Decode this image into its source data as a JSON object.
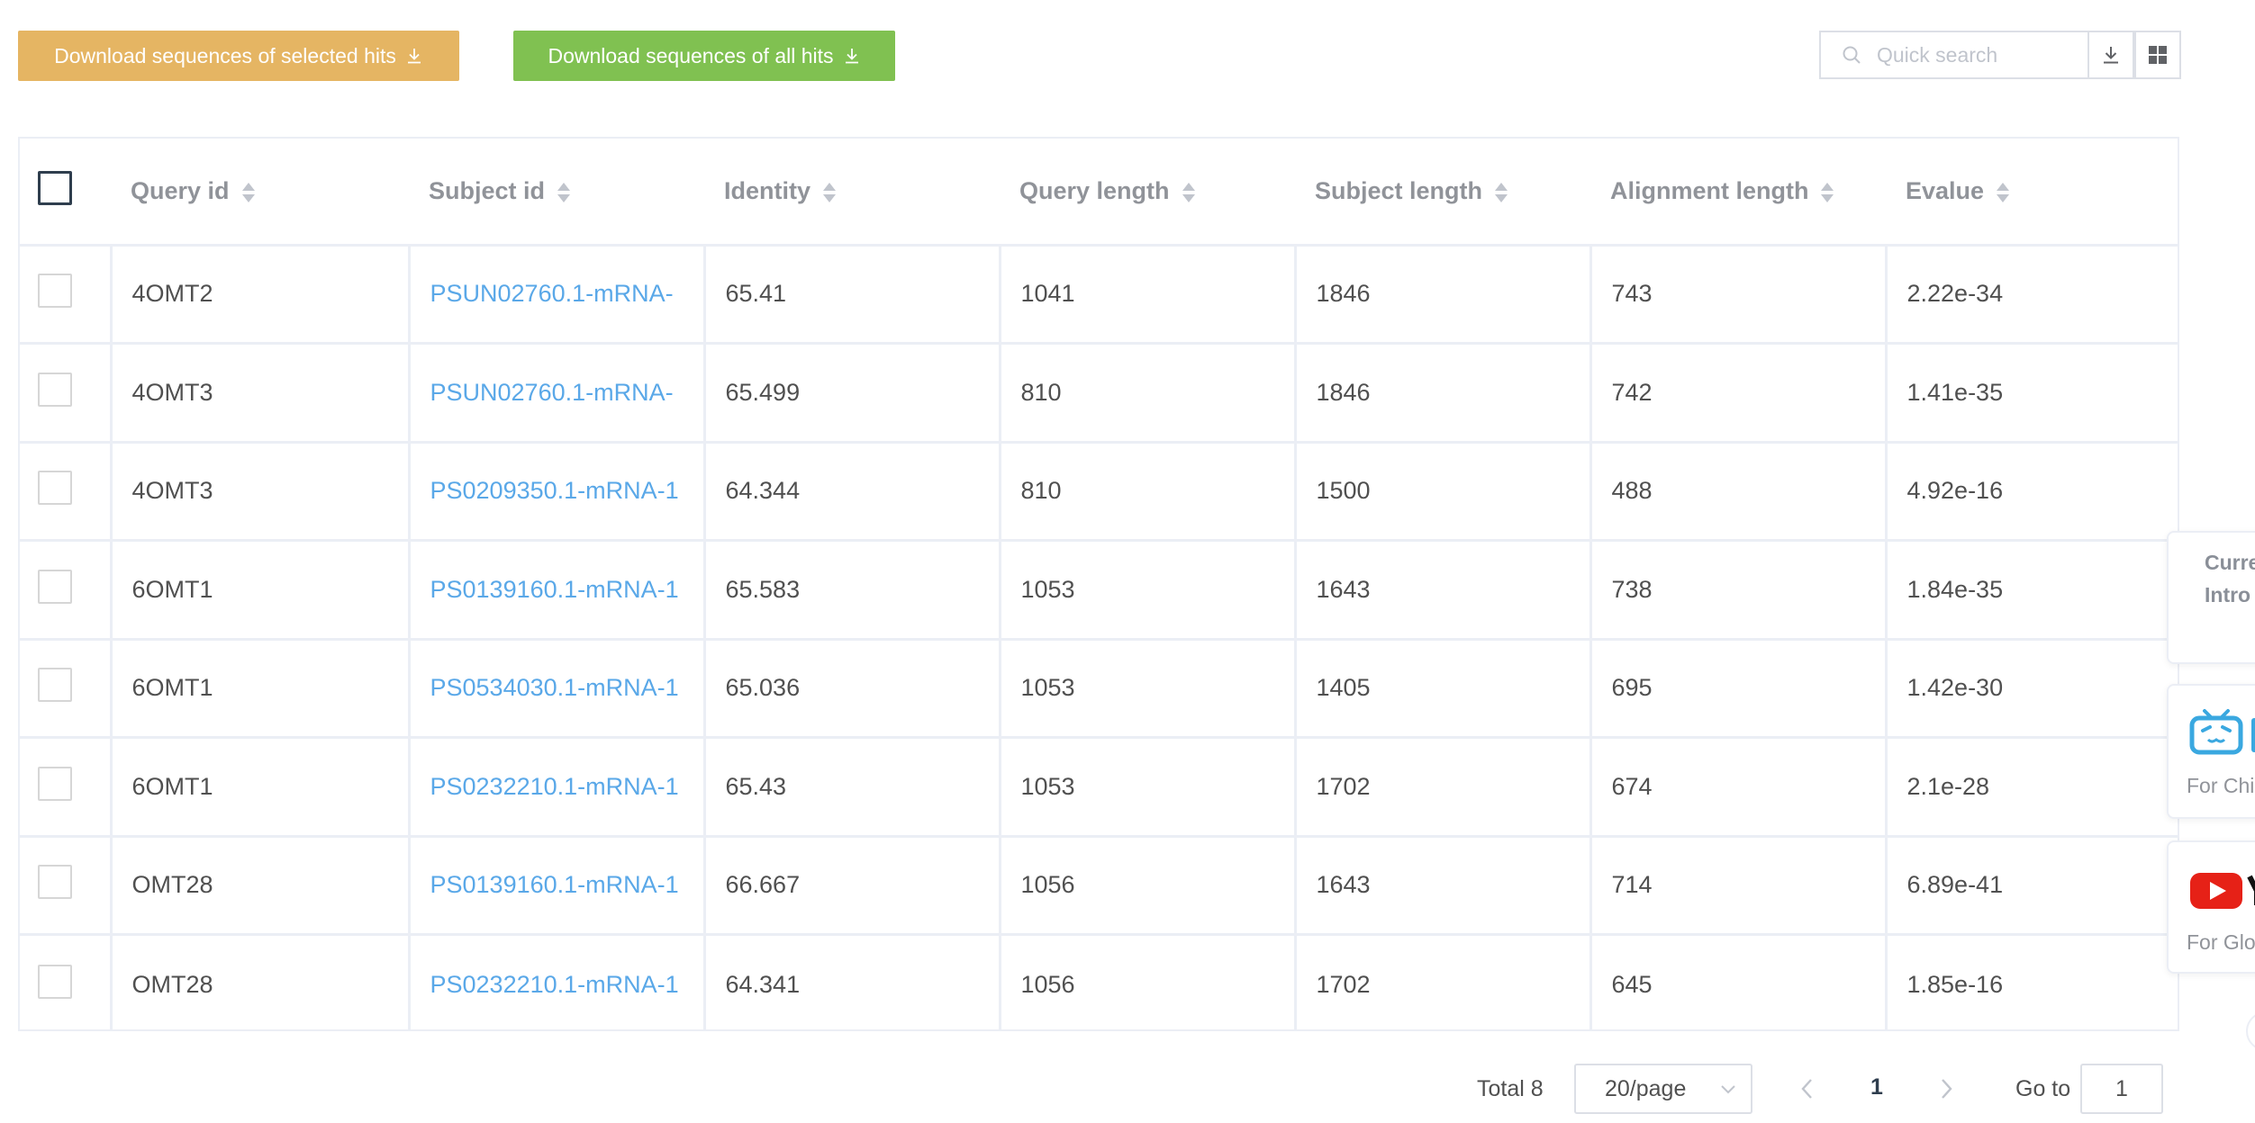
{
  "toolbar": {
    "download_selected_label": "Download sequences of selected hits",
    "download_all_label": "Download sequences of all hits",
    "search_placeholder": "Quick search",
    "colors": {
      "download_selected": "#e5b563",
      "download_all": "#80c151"
    }
  },
  "table": {
    "headers": [
      "Query id",
      "Subject id",
      "Identity",
      "Query length",
      "Subject length",
      "Alignment length",
      "Evalue"
    ],
    "rows": [
      {
        "query_id": "4OMT2",
        "subject_id": "PSUN02760.1-mRNA-",
        "identity": "65.41",
        "query_length": "1041",
        "subject_length": "1846",
        "alignment_length": "743",
        "evalue": "2.22e-34"
      },
      {
        "query_id": "4OMT3",
        "subject_id": "PSUN02760.1-mRNA-",
        "identity": "65.499",
        "query_length": "810",
        "subject_length": "1846",
        "alignment_length": "742",
        "evalue": "1.41e-35"
      },
      {
        "query_id": "4OMT3",
        "subject_id": "PS0209350.1-mRNA-1",
        "identity": "64.344",
        "query_length": "810",
        "subject_length": "1500",
        "alignment_length": "488",
        "evalue": "4.92e-16"
      },
      {
        "query_id": "6OMT1",
        "subject_id": "PS0139160.1-mRNA-1",
        "identity": "65.583",
        "query_length": "1053",
        "subject_length": "1643",
        "alignment_length": "738",
        "evalue": "1.84e-35"
      },
      {
        "query_id": "6OMT1",
        "subject_id": "PS0534030.1-mRNA-1",
        "identity": "65.036",
        "query_length": "1053",
        "subject_length": "1405",
        "alignment_length": "695",
        "evalue": "1.42e-30"
      },
      {
        "query_id": "6OMT1",
        "subject_id": "PS0232210.1-mRNA-1",
        "identity": "65.43",
        "query_length": "1053",
        "subject_length": "1702",
        "alignment_length": "674",
        "evalue": "2.1e-28"
      },
      {
        "query_id": "OMT28",
        "subject_id": "PS0139160.1-mRNA-1",
        "identity": "66.667",
        "query_length": "1056",
        "subject_length": "1643",
        "alignment_length": "714",
        "evalue": "6.89e-41"
      },
      {
        "query_id": "OMT28",
        "subject_id": "PS0232210.1-mRNA-1",
        "identity": "64.341",
        "query_length": "1056",
        "subject_length": "1702",
        "alignment_length": "645",
        "evalue": "1.85e-16"
      }
    ],
    "link_color": "#5aa8e8"
  },
  "side_panels": {
    "intro_line1": "Curre",
    "intro_line2": "Intro",
    "bilibili_caption": "For Chi",
    "youtube_caption": "For Glo"
  },
  "pagination": {
    "total_label": "Total 8",
    "page_size": "20/page",
    "current_page": "1",
    "goto_label": "Go to",
    "goto_value": "1"
  }
}
